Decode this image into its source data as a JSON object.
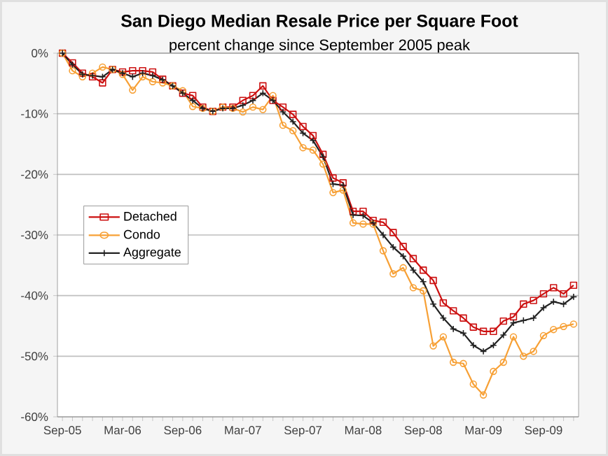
{
  "chart_data": {
    "type": "line",
    "title": "San Diego Median Resale Price per Square Foot",
    "subtitle": "percent change since September 2005 peak",
    "categories": [
      "Sep-05",
      null,
      null,
      null,
      null,
      null,
      "Mar-06",
      null,
      null,
      null,
      null,
      null,
      "Sep-06",
      null,
      null,
      null,
      null,
      null,
      "Mar-07",
      null,
      null,
      null,
      null,
      null,
      "Sep-07",
      null,
      null,
      null,
      null,
      null,
      "Mar-08",
      null,
      null,
      null,
      null,
      null,
      "Sep-08",
      null,
      null,
      null,
      null,
      null,
      "Mar-09",
      null,
      null,
      null,
      null,
      null,
      "Sep-09",
      null,
      null,
      null
    ],
    "ylim": [
      -60,
      0
    ],
    "yticks": [
      {
        "value": 0,
        "label": "0%"
      },
      {
        "value": -10,
        "label": "-10%"
      },
      {
        "value": -20,
        "label": "-20%"
      },
      {
        "value": -30,
        "label": "-30%"
      },
      {
        "value": -40,
        "label": "-40%"
      },
      {
        "value": -50,
        "label": "-50%"
      },
      {
        "value": -60,
        "label": "-60%"
      }
    ],
    "grid": "y",
    "legend": "left",
    "series": [
      {
        "name": "Detached",
        "color": "#cc1010",
        "marker": "square",
        "values": [
          0,
          -1.6,
          -3.3,
          -3.9,
          -4.9,
          -2.7,
          -3.1,
          -2.9,
          -2.9,
          -3.1,
          -4.3,
          -5.4,
          -6.6,
          -7,
          -8.9,
          -9.6,
          -8.9,
          -8.9,
          -7.8,
          -7,
          -5.4,
          -7.8,
          -8.9,
          -10.1,
          -12.1,
          -13.6,
          -16.7,
          -20.6,
          -21.4,
          -26.1,
          -26.1,
          -27.6,
          -27.9,
          -29.6,
          -31.9,
          -33.9,
          -35.8,
          -37.5,
          -41.2,
          -42.5,
          -43.7,
          -45.2,
          -45.9,
          -45.9,
          -44.2,
          -43.5,
          -41.4,
          -40.8,
          -39.7,
          -38.7,
          -39.7,
          -38.3
        ]
      },
      {
        "name": "Condo",
        "color": "#f7a035",
        "marker": "circle",
        "values": [
          0,
          -2.9,
          -3.9,
          -3.3,
          -2.3,
          -2.7,
          -3.5,
          -6.1,
          -3.9,
          -4.7,
          -4.9,
          -5.4,
          -6.2,
          -8.8,
          -9.1,
          -9.6,
          -8.9,
          -9.1,
          -9.7,
          -8.9,
          -9.3,
          -7,
          -11.9,
          -12.8,
          -15.6,
          -16,
          -18.3,
          -23,
          -22.6,
          -28,
          -28.2,
          -28.2,
          -32.6,
          -36.4,
          -35.4,
          -38.7,
          -39.2,
          -48.3,
          -46.8,
          -51,
          -51.2,
          -54.6,
          -56.4,
          -52.5,
          -51,
          -46.8,
          -50,
          -49.2,
          -46.6,
          -45.6,
          -45.1,
          -44.7
        ]
      },
      {
        "name": "Aggregate",
        "color": "#222222",
        "marker": "cross",
        "values": [
          0,
          -1.9,
          -3.5,
          -3.7,
          -3.9,
          -2.7,
          -3.3,
          -3.9,
          -3.3,
          -3.7,
          -4.4,
          -5.4,
          -6.6,
          -7.8,
          -9.1,
          -9.6,
          -9.1,
          -9.1,
          -8.6,
          -7.8,
          -6.6,
          -7.8,
          -9.7,
          -11.3,
          -13.2,
          -14.4,
          -17.1,
          -21.6,
          -21.8,
          -26.7,
          -26.8,
          -28,
          -30,
          -32,
          -33.5,
          -35.8,
          -37.7,
          -41.4,
          -43.7,
          -45.5,
          -46.2,
          -48.2,
          -49.2,
          -48.2,
          -46.5,
          -44.5,
          -44.1,
          -43.7,
          -42,
          -41,
          -41.4,
          -40.2
        ]
      }
    ]
  }
}
